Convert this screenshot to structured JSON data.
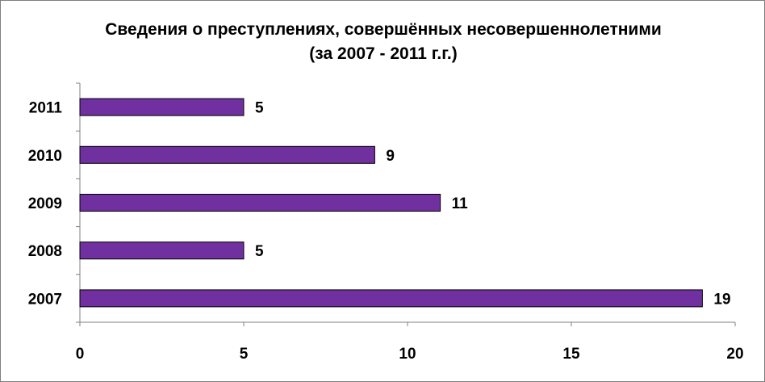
{
  "chart_data": {
    "type": "bar",
    "orientation": "horizontal",
    "title": "Сведения о преступлениях, совершённых несовершеннолетними",
    "subtitle": "(за 2007 - 2011 г.г.)",
    "categories": [
      "2007",
      "2008",
      "2009",
      "2010",
      "2011"
    ],
    "values": [
      19,
      5,
      11,
      9,
      5
    ],
    "data_labels": [
      "19",
      "5",
      "11",
      "9",
      "5"
    ],
    "xlim": [
      0,
      20
    ],
    "x_ticks": [
      "0",
      "5",
      "10",
      "15",
      "20"
    ],
    "xlabel": "",
    "ylabel": "",
    "grid": false,
    "legend": "none",
    "bar_color": "#7030a0",
    "bar_outline": "#000000"
  }
}
